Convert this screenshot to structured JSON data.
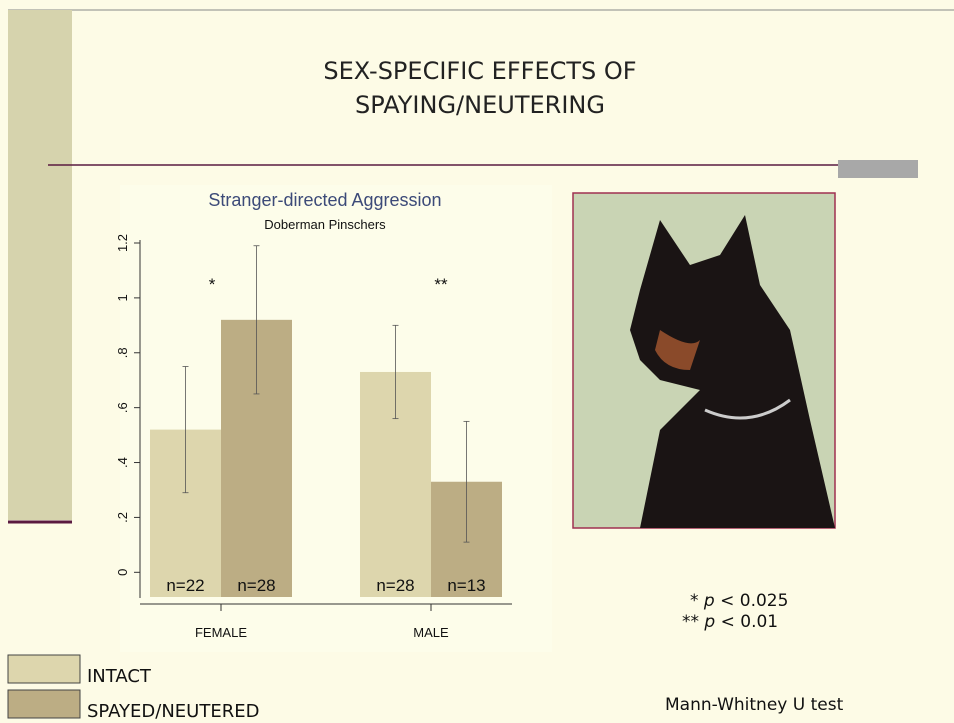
{
  "slide": {
    "title_lines": [
      "SEX-SPECIFIC EFFECTS OF",
      "SPAYING/NEUTERING"
    ],
    "p_notes": [
      [
        "*",
        "p",
        "< 0.025"
      ],
      [
        "**",
        "p",
        "< 0.01"
      ]
    ],
    "test": "Mann-Whitney U test"
  },
  "chart_data": {
    "type": "bar",
    "title": "Stranger-directed Aggression",
    "subtitle": "Doberman Pinschers",
    "categories": [
      "FEMALE",
      "MALE"
    ],
    "significance": [
      "*",
      "**"
    ],
    "series": [
      {
        "name": "INTACT",
        "color": "#ddd6ad",
        "values": [
          0.52,
          0.73
        ],
        "errors": [
          0.23,
          0.17
        ],
        "n_labels": [
          "n=22",
          "n=28"
        ]
      },
      {
        "name": "SPAYED/NEUTERED",
        "color": "#bcad84",
        "values": [
          0.92,
          0.33
        ],
        "errors": [
          0.27,
          0.22
        ],
        "n_labels": [
          "n=28",
          "n=13"
        ]
      }
    ],
    "ylim": [
      -0.09,
      1.2
    ],
    "yticks": [
      0,
      {
        "value": 0.2,
        "label": ".2"
      },
      {
        "value": 0.4,
        "label": ".4"
      },
      {
        "value": 0.6,
        "label": ".6"
      },
      {
        "value": 0.8,
        "label": ".8"
      },
      1,
      1.2
    ]
  }
}
